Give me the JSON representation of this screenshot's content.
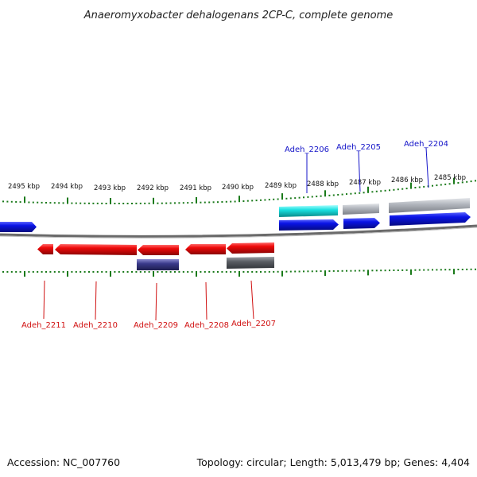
{
  "title": "Anaeromyxobacter dehalogenans 2CP-C, complete genome",
  "footer": {
    "accession": "Accession: NC_007760",
    "topology": "Topology: circular; Length: 5,013,479 bp; Genes: 4,404"
  },
  "scale_labels": [
    "2495 kbp",
    "2494 kbp",
    "2493 kbp",
    "2492 kbp",
    "2491 kbp",
    "2490 kbp",
    "2489 kbp",
    "2488 kbp",
    "2487 kbp",
    "2486 kbp",
    "2485 kbp"
  ],
  "genes_top": [
    "Adeh_2206",
    "Adeh_2205",
    "Adeh_2204"
  ],
  "genes_bottom": [
    "Adeh_2211",
    "Adeh_2210",
    "Adeh_2209",
    "Adeh_2208",
    "Adeh_2207"
  ],
  "colors": {
    "forward_cds": "#0a14e6",
    "reverse_cds": "#ee0a0a",
    "forward_gene": "#9aa0a8",
    "reverse_gene": "#555a60",
    "highlight_gene": "#18e0e0",
    "reverse_gene_alt": "#3a3a8a",
    "tick": "#1a7a1a",
    "backbone": "#6a6a6a",
    "label_top": "#1414c8",
    "label_bottom": "#d01010"
  }
}
